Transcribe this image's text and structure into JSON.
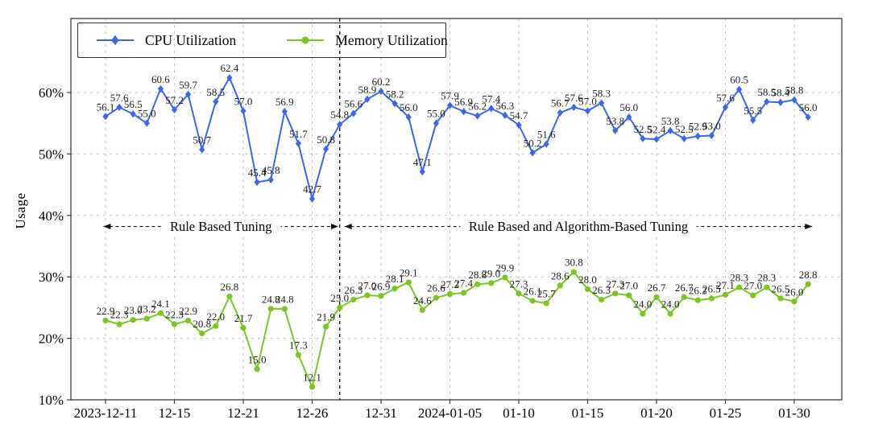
{
  "figure": {
    "background": "#ffffff"
  },
  "chart_data": {
    "type": "line",
    "title": "",
    "ylabel": "Usage",
    "grid": "dashed",
    "legend_position": "upper-left",
    "ylim": [
      10,
      72
    ],
    "y_ticks": [
      {
        "value": 10,
        "label": "10%"
      },
      {
        "value": 20,
        "label": "20%"
      },
      {
        "value": 30,
        "label": "30%"
      },
      {
        "value": 40,
        "label": "40%"
      },
      {
        "value": 50,
        "label": "50%"
      },
      {
        "value": 60,
        "label": "60%"
      }
    ],
    "x_ticks": [
      {
        "index": 0,
        "label": "2023-12-11"
      },
      {
        "index": 5,
        "label": "12-15"
      },
      {
        "index": 10,
        "label": "12-21"
      },
      {
        "index": 15,
        "label": "12-26"
      },
      {
        "index": 20,
        "label": "12-31"
      },
      {
        "index": 25,
        "label": "2024-01-05"
      },
      {
        "index": 30,
        "label": "01-10"
      },
      {
        "index": 35,
        "label": "01-15"
      },
      {
        "index": 40,
        "label": "01-20"
      },
      {
        "index": 45,
        "label": "01-25"
      },
      {
        "index": 50,
        "label": "01-30"
      }
    ],
    "series": [
      {
        "name": "CPU Utilization",
        "color": "#3d66f0",
        "marker": "diamond",
        "values": [
          56.1,
          57.6,
          56.5,
          55.0,
          60.6,
          57.2,
          59.7,
          50.7,
          58.5,
          62.4,
          57.0,
          45.4,
          45.8,
          56.9,
          51.7,
          42.7,
          50.8,
          54.8,
          56.6,
          58.9,
          60.2,
          58.2,
          56.0,
          47.1,
          55.0,
          57.9,
          56.9,
          56.2,
          57.4,
          56.3,
          54.7,
          50.2,
          51.6,
          56.7,
          57.6,
          57.0,
          58.3,
          53.8,
          56.0,
          52.5,
          52.4,
          53.8,
          52.5,
          52.9,
          53.0,
          57.6,
          60.5,
          55.5,
          58.5,
          58.4,
          58.8,
          56.0
        ]
      },
      {
        "name": "Memory Utilization",
        "color": "#7cc623",
        "marker": "circle",
        "values": [
          22.9,
          22.3,
          23.0,
          23.2,
          24.1,
          22.3,
          22.9,
          20.8,
          22.0,
          26.8,
          21.7,
          15.0,
          24.8,
          24.8,
          17.3,
          12.1,
          21.9,
          25.0,
          26.3,
          27.0,
          26.9,
          28.1,
          29.1,
          24.6,
          26.6,
          27.2,
          27.4,
          28.8,
          29.0,
          29.9,
          27.3,
          26.1,
          25.7,
          28.6,
          30.8,
          28.0,
          26.3,
          27.3,
          27.0,
          24.0,
          26.7,
          24.0,
          26.7,
          26.2,
          26.5,
          27.1,
          28.3,
          27.0,
          28.3,
          26.5,
          26.0,
          28.8
        ]
      }
    ],
    "separator": {
      "index": 17,
      "style": "dashed"
    },
    "annotations": [
      {
        "label": "Rule Based  Tuning",
        "from_index": -0.15,
        "to_index": 16.9,
        "y_percent": 38.2
      },
      {
        "label": "Rule Based and Algorithm-Based Tuning",
        "from_index": 17.35,
        "to_index": 51.3,
        "y_percent": 38.2
      }
    ],
    "colors": {
      "grid": "#c6c6c6",
      "frame": "#3c3c3c",
      "annotation": "#141414",
      "point_label": "#1f1f1f"
    }
  }
}
